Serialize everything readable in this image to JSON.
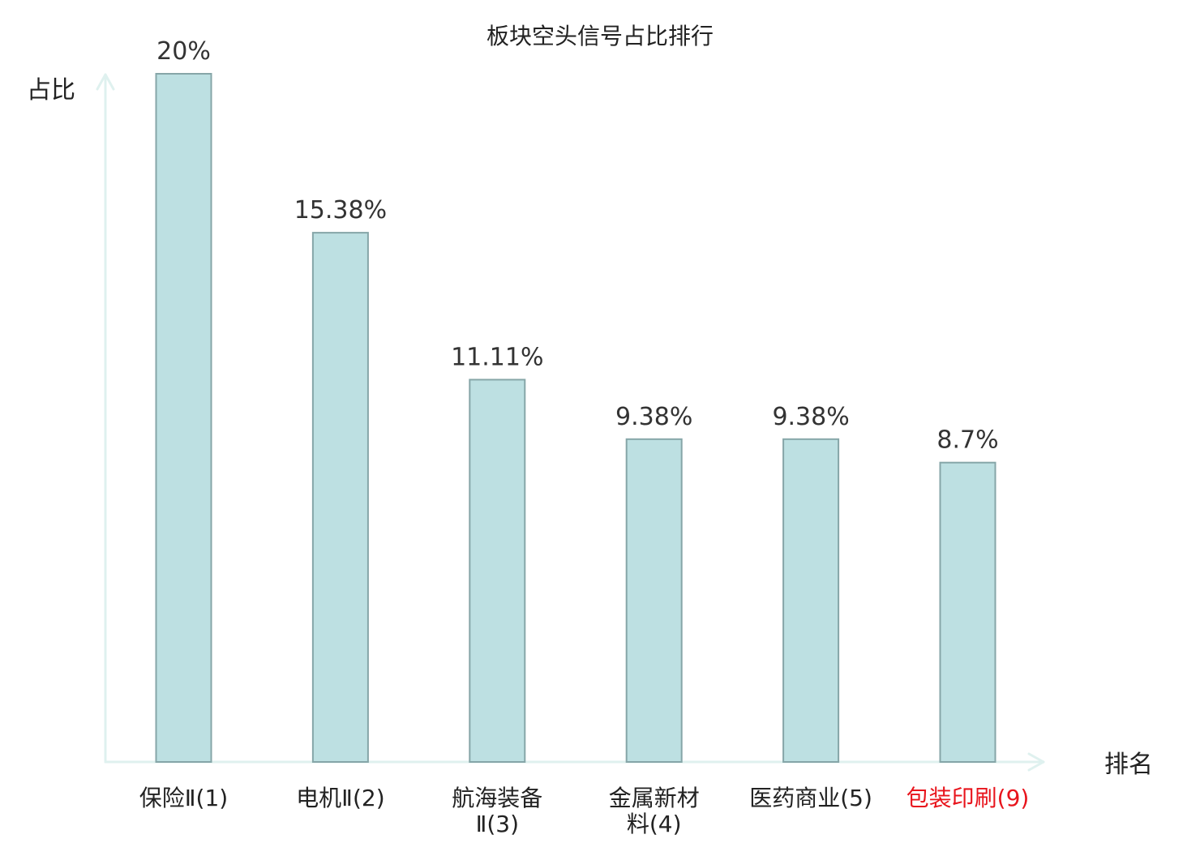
{
  "chart_data": {
    "type": "bar",
    "title": "板块空头信号占比排行",
    "xlabel": "排名",
    "ylabel": "占比",
    "categories": [
      {
        "lines": [
          "保险Ⅱ(1)"
        ]
      },
      {
        "lines": [
          "电机Ⅱ(2)"
        ]
      },
      {
        "lines": [
          "航海装备",
          "Ⅱ(3)"
        ]
      },
      {
        "lines": [
          "金属新材",
          "料(4)"
        ]
      },
      {
        "lines": [
          "医药商业(5)"
        ]
      },
      {
        "lines": [
          "包装印刷(9)"
        ],
        "highlight": true
      }
    ],
    "values": [
      20,
      15.38,
      11.11,
      9.38,
      9.38,
      8.7
    ],
    "value_labels": [
      "20%",
      "15.38%",
      "11.11%",
      "9.38%",
      "9.38%",
      "8.7%"
    ],
    "ylim": [
      0,
      20
    ],
    "grid": false,
    "legend": "none"
  },
  "colors": {
    "bar_fill": "#bde0e2",
    "bar_stroke": "#86a6a8",
    "axis": "#dff1ef",
    "text": "#222222",
    "value_text": "#333333",
    "highlight_text": "#e8141c"
  }
}
